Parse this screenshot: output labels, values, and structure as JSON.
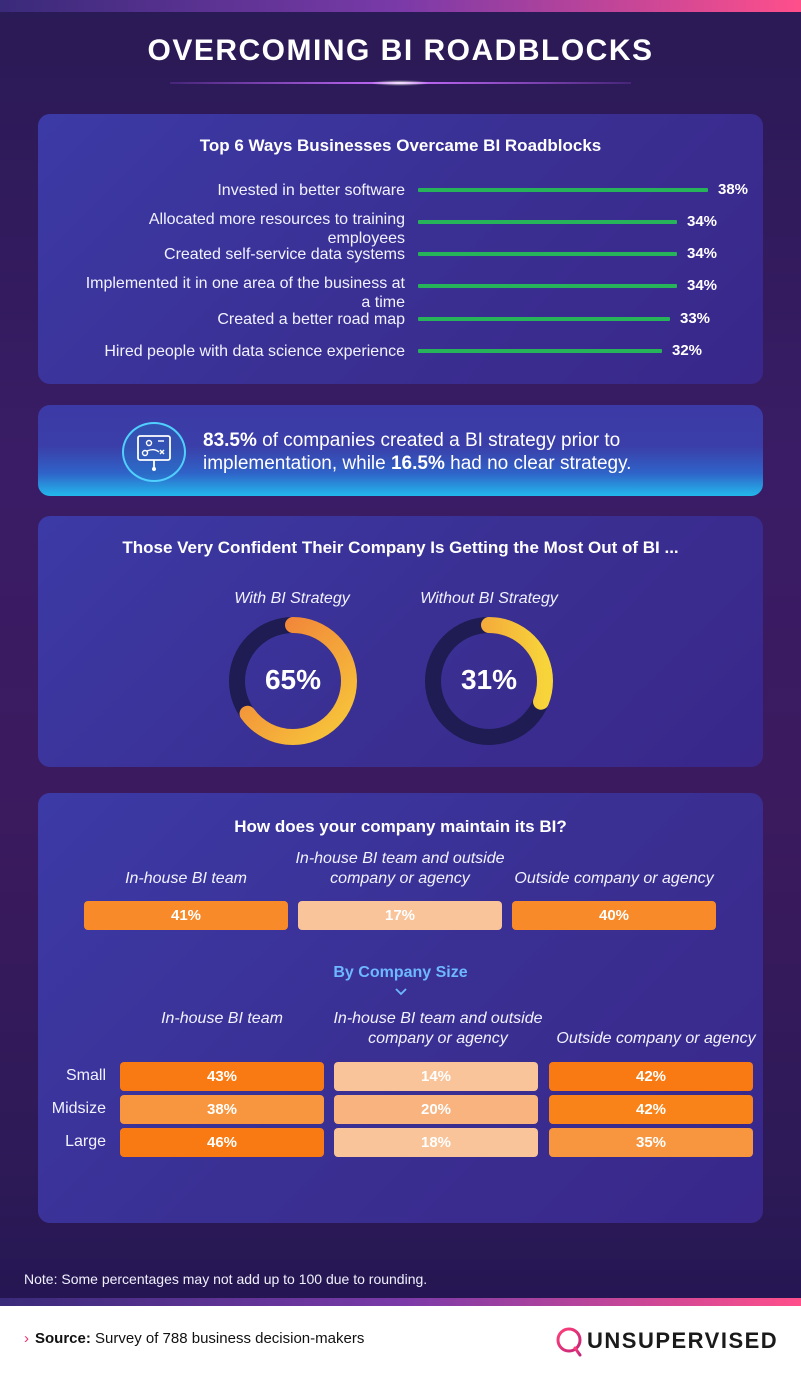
{
  "title": "OVERCOMING BI ROADBLOCKS",
  "colors": {
    "bar": "#27b35a",
    "donut_with": "#f07a3a",
    "donut_without": "#f4b63c",
    "orange_dark": "#f97a12",
    "orange_mid": "#f8953f",
    "orange_light": "#f9c49a"
  },
  "ways": {
    "title": "Top 6 Ways Businesses Overcame BI Roadblocks",
    "items": [
      {
        "label": "Invested in better software",
        "value": 38,
        "display": "38%"
      },
      {
        "label": "Allocated more resources to training employees",
        "value": 34,
        "display": "34%"
      },
      {
        "label": "Created self-service data systems",
        "value": 34,
        "display": "34%"
      },
      {
        "label": "Implemented it in one area of the business at a time",
        "value": 34,
        "display": "34%"
      },
      {
        "label": "Created a better road map",
        "value": 33,
        "display": "33%"
      },
      {
        "label": "Hired people with data science experience",
        "value": 32,
        "display": "32%"
      }
    ]
  },
  "strategy": {
    "pct_with": "83.5%",
    "text_1": " of companies created a BI strategy prior to implementation, while ",
    "pct_without": "16.5%",
    "text_2": " had no clear strategy.",
    "icon": "strategy-board-icon"
  },
  "confidence": {
    "title": "Those Very Confident Their Company Is Getting the Most Out of BI ...",
    "with_label": "With BI Strategy",
    "with_value": 65,
    "with_display": "65%",
    "without_label": "Without BI Strategy",
    "without_value": 31,
    "without_display": "31%"
  },
  "maintain": {
    "title": "How does your company maintain its BI?",
    "headers": [
      "In-house BI team",
      "In-house BI team and outside company or agency",
      "Outside company or agency"
    ],
    "values": [
      "41%",
      "17%",
      "40%"
    ],
    "by_size_label": "By Company Size",
    "size_headers": [
      "In-house BI team",
      "In-house BI team and outside company or agency",
      "Outside company or agency"
    ],
    "rows": [
      {
        "label": "Small",
        "values": [
          "43%",
          "14%",
          "42%"
        ]
      },
      {
        "label": "Midsize",
        "values": [
          "38%",
          "20%",
          "42%"
        ]
      },
      {
        "label": "Large",
        "values": [
          "46%",
          "18%",
          "35%"
        ]
      }
    ]
  },
  "chart_data": [
    {
      "type": "bar",
      "title": "Top 6 Ways Businesses Overcame BI Roadblocks",
      "categories": [
        "Invested in better software",
        "Allocated more resources to training employees",
        "Created self-service data systems",
        "Implemented it in one area of the business at a time",
        "Created a better road map",
        "Hired people with data science experience"
      ],
      "values": [
        38,
        34,
        34,
        34,
        33,
        32
      ]
    },
    {
      "type": "pie",
      "title": "Those Very Confident Their Company Is Getting the Most Out of BI ...",
      "categories": [
        "With BI Strategy",
        "Without BI Strategy"
      ],
      "values": [
        65,
        31
      ]
    },
    {
      "type": "table",
      "title": "How does your company maintain its BI?",
      "columns": [
        "In-house BI team",
        "In-house BI team and outside company or agency",
        "Outside company or agency"
      ],
      "overall": [
        41,
        17,
        40
      ],
      "rows": [
        {
          "label": "Small",
          "values": [
            43,
            14,
            42
          ]
        },
        {
          "label": "Midsize",
          "values": [
            38,
            20,
            42
          ]
        },
        {
          "label": "Large",
          "values": [
            46,
            18,
            35
          ]
        }
      ]
    }
  ],
  "note": "Note: Some percentages may not add up to 100 due to rounding.",
  "footer": {
    "source_label": "Source:",
    "source_text": " Survey of 788 business decision-makers",
    "brand": "UNSUPERVISED"
  }
}
